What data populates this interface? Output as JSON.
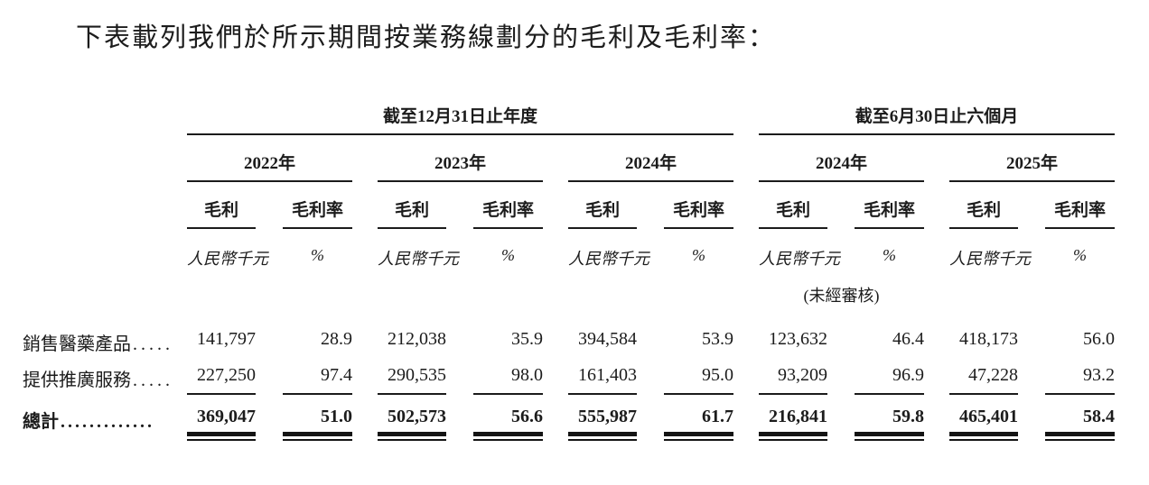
{
  "intro": "下表載列我們於所示期間按業務線劃分的毛利及毛利率：",
  "table": {
    "group_headers": [
      {
        "label": "截至12月31日止年度"
      },
      {
        "label": "截至6月30日止六個月"
      }
    ],
    "years": [
      "2022年",
      "2023年",
      "2024年",
      "2024年",
      "2025年"
    ],
    "col_headers": {
      "profit": "毛利",
      "margin": "毛利率"
    },
    "units": {
      "profit": "人民幣千元",
      "margin": "%"
    },
    "unaudited_note": "(未經審核)",
    "rows": [
      {
        "label": "銷售醫藥產品",
        "dots": ".....",
        "values": [
          "141,797",
          "28.9",
          "212,038",
          "35.9",
          "394,584",
          "53.9",
          "123,632",
          "46.4",
          "418,173",
          "56.0"
        ]
      },
      {
        "label": "提供推廣服務",
        "dots": ".....",
        "values": [
          "227,250",
          "97.4",
          "290,535",
          "98.0",
          "161,403",
          "95.0",
          "93,209",
          "96.9",
          "47,228",
          "93.2"
        ]
      }
    ],
    "total": {
      "label": "總計",
      "dots": ".............",
      "values": [
        "369,047",
        "51.0",
        "502,573",
        "56.6",
        "555,987",
        "61.7",
        "216,841",
        "59.8",
        "465,401",
        "58.4"
      ]
    }
  }
}
